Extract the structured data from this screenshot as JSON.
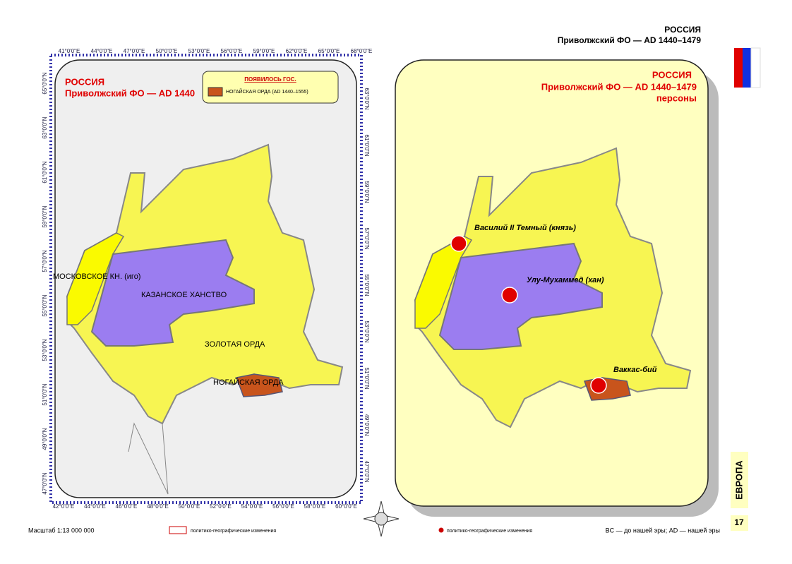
{
  "header": {
    "country": "РОССИЯ",
    "region": "Приволжский ФО — AD 1440–1479"
  },
  "left_map": {
    "title": "РОССИЯ",
    "subtitle": "Приволжский ФО —  AD 1440",
    "legend": {
      "heading": "ПОЯВИЛОСЬ ГОС.",
      "item": "НОГАЙСКАЯ ОРДА (AD 1440–1555)"
    },
    "regions": [
      "МОСКОВСКОЕ КН. (иго)",
      "КАЗАНСКОЕ ХАНСТВО",
      "ЗОЛОТАЯ ОРДА",
      "НОГАЙСКАЯ ОРДА"
    ],
    "top_ticks": [
      "41°0'0\"E",
      "44°0'0\"E",
      "47°0'0\"E",
      "50°0'0\"E",
      "53°0'0\"E",
      "56°0'0\"E",
      "59°0'0\"E",
      "62°0'0\"E",
      "65°0'0\"E",
      "68°0'0\"E"
    ],
    "bottom_ticks": [
      "42°0'0\"E",
      "44°0'0\"E",
      "46°0'0\"E",
      "48°0'0\"E",
      "50°0'0\"E",
      "52°0'0\"E",
      "54°0'0\"E",
      "56°0'0\"E",
      "58°0'0\"E",
      "60°0'0\"E"
    ],
    "left_ticks": [
      "65°0'0\"N",
      "63°0'0\"N",
      "61°0'0\"N",
      "59°0'0\"N",
      "57°0'0\"N",
      "55°0'0\"N",
      "53°0'0\"N",
      "51°0'0\"N",
      "49°0'0\"N",
      "47°0'0\"N"
    ],
    "right_ticks": [
      "63°0'0\"N",
      "61°0'0\"N",
      "59°0'0\"N",
      "57°0'0\"N",
      "55°0'0\"N",
      "53°0'0\"N",
      "51°0'0\"N",
      "49°0'0\"N",
      "47°0'0\"N"
    ]
  },
  "right_map": {
    "title": "РОССИЯ",
    "subtitle": "Приволжский ФО — AD 1440–1479",
    "note": "персоны",
    "persons": [
      "Василий II Темный (князь)",
      "Улу-Мухаммед (хан)",
      "Ваккас-бий"
    ]
  },
  "footer": {
    "scale": "Масштаб 1:13 000 000",
    "legend_left": "политико-географические изменения",
    "legend_right": "политико-географические изменения",
    "era_note": "BC — до нашей эры; AD — нашей эры"
  },
  "side_tab": "ЕВРОПА",
  "page_number": "17"
}
